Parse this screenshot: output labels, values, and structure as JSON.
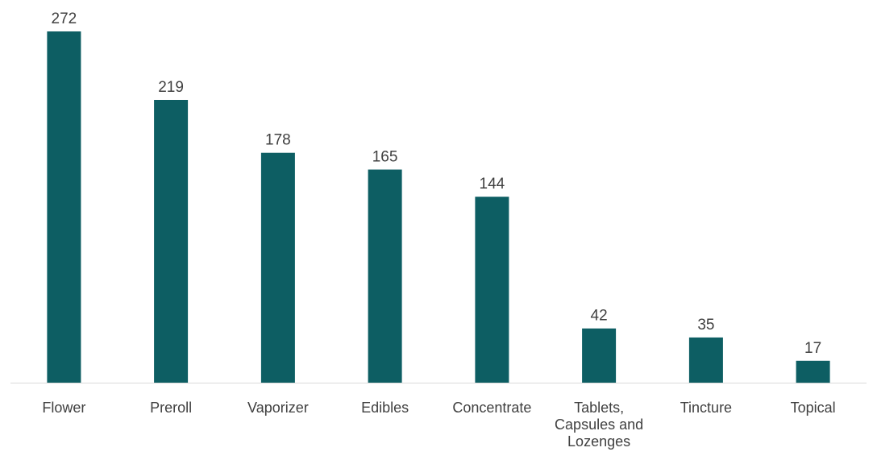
{
  "chart_data": {
    "type": "bar",
    "title": "",
    "xlabel": "",
    "ylabel": "",
    "categories": [
      "Flower",
      "Preroll",
      "Vaporizer",
      "Edibles",
      "Concentrate",
      "Tablets, Capsules and Lozenges",
      "Tincture",
      "Topical"
    ],
    "values": [
      272,
      219,
      178,
      165,
      144,
      42,
      35,
      17
    ],
    "ylim": [
      0,
      272
    ],
    "grid": false,
    "legend": "none",
    "data_labels": true,
    "colors": {
      "bar": "#0d5e63",
      "axis": "#d9d9d9",
      "text": "#404040"
    }
  }
}
